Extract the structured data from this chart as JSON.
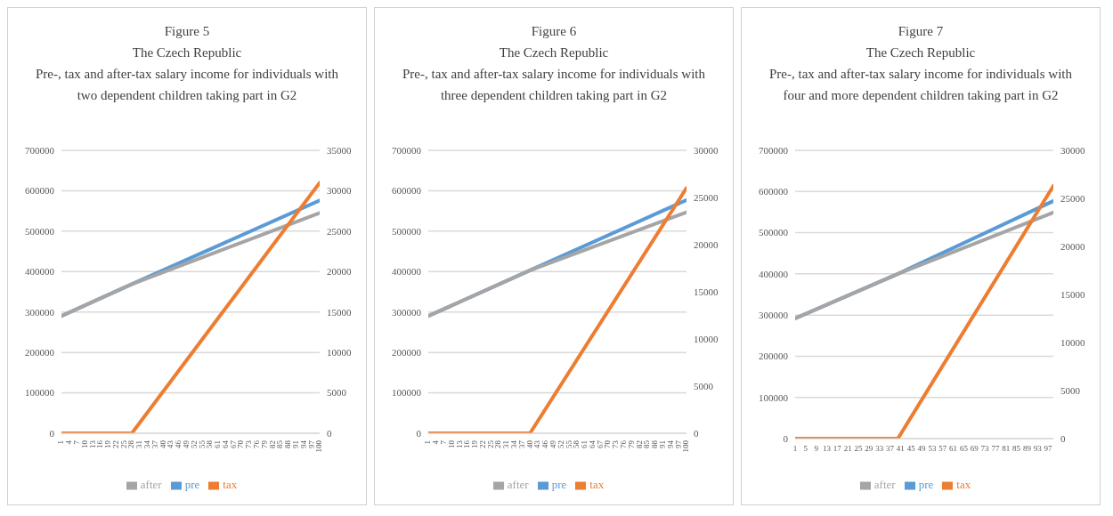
{
  "chart_data": [
    {
      "type": "line",
      "title": "Figure 5",
      "subtitle": "The Czech Republic\nPre-, tax and after-tax salary income for individuals with two dependent children taking part in G2",
      "xlim": [
        1,
        100
      ],
      "xticks": [
        1,
        4,
        7,
        10,
        13,
        16,
        19,
        22,
        25,
        28,
        31,
        34,
        37,
        40,
        43,
        46,
        49,
        52,
        55,
        58,
        61,
        64,
        67,
        70,
        73,
        76,
        79,
        82,
        85,
        88,
        91,
        94,
        97,
        100
      ],
      "ylim": [
        0,
        700000
      ],
      "yticks": [
        0,
        100000,
        200000,
        300000,
        400000,
        500000,
        600000,
        700000
      ],
      "y2lim": [
        0,
        35000
      ],
      "y2ticks": [
        0,
        5000,
        10000,
        15000,
        20000,
        25000,
        30000,
        35000
      ],
      "grid": "y",
      "legend": "bottom",
      "marker": "none",
      "line_style": "solid",
      "series": [
        {
          "name": "pre",
          "color": "#5b9bd5",
          "x": [
            1,
            28,
            100
          ],
          "values": [
            290000,
            369000,
            576000
          ]
        },
        {
          "name": "after",
          "color": "#a5a5a5",
          "x": [
            1,
            28,
            100
          ],
          "values": [
            290000,
            369000,
            545000
          ]
        },
        {
          "name": "tax",
          "color": "#ed7d31",
          "axis": "y2",
          "x": [
            1,
            28,
            100
          ],
          "values": [
            0,
            0,
            31000
          ]
        }
      ]
    },
    {
      "type": "line",
      "title": "Figure 6",
      "subtitle": "The Czech Republic\nPre-, tax and after-tax salary income for individuals with three dependent children taking part in G2",
      "xlim": [
        1,
        100
      ],
      "xticks": [
        1,
        4,
        7,
        10,
        13,
        16,
        19,
        22,
        25,
        28,
        31,
        34,
        37,
        40,
        43,
        46,
        49,
        52,
        55,
        58,
        61,
        64,
        67,
        70,
        73,
        76,
        79,
        82,
        85,
        88,
        91,
        94,
        97,
        100
      ],
      "ylim": [
        0,
        700000
      ],
      "yticks": [
        0,
        100000,
        200000,
        300000,
        400000,
        500000,
        600000,
        700000
      ],
      "y2lim": [
        0,
        30000
      ],
      "y2ticks": [
        0,
        5000,
        10000,
        15000,
        20000,
        25000,
        30000
      ],
      "grid": "y",
      "legend": "bottom",
      "marker": "none",
      "line_style": "solid",
      "series": [
        {
          "name": "pre",
          "color": "#5b9bd5",
          "x": [
            1,
            40,
            100
          ],
          "values": [
            290000,
            403000,
            577000
          ]
        },
        {
          "name": "after",
          "color": "#a5a5a5",
          "x": [
            1,
            40,
            100
          ],
          "values": [
            290000,
            403000,
            547000
          ]
        },
        {
          "name": "tax",
          "color": "#ed7d31",
          "axis": "y2",
          "x": [
            1,
            40,
            100
          ],
          "values": [
            0,
            0,
            26000
          ]
        }
      ]
    },
    {
      "type": "line",
      "title": "Figure 7",
      "subtitle": "The Czech Republic\nPre-, tax and after-tax salary income for individuals with four and more dependent children taking part in G2",
      "xlim": [
        1,
        99
      ],
      "xticks": [
        1,
        5,
        9,
        13,
        17,
        21,
        25,
        29,
        33,
        37,
        41,
        45,
        49,
        53,
        57,
        61,
        65,
        69,
        73,
        77,
        81,
        85,
        89,
        93,
        97
      ],
      "ylim": [
        0,
        700000
      ],
      "yticks": [
        0,
        100000,
        200000,
        300000,
        400000,
        500000,
        600000,
        700000
      ],
      "y2lim": [
        0,
        30000
      ],
      "y2ticks": [
        0,
        5000,
        10000,
        15000,
        20000,
        25000,
        30000
      ],
      "grid": "y",
      "legend": "bottom",
      "marker": "none",
      "line_style": "solid",
      "series": [
        {
          "name": "pre",
          "color": "#5b9bd5",
          "x": [
            1,
            40,
            99
          ],
          "values": [
            292000,
            400000,
            577000
          ]
        },
        {
          "name": "after",
          "color": "#a5a5a5",
          "x": [
            1,
            40,
            99
          ],
          "values": [
            292000,
            400000,
            549000
          ]
        },
        {
          "name": "tax",
          "color": "#ed7d31",
          "axis": "y2",
          "x": [
            1,
            40,
            99
          ],
          "values": [
            0,
            0,
            26300
          ]
        }
      ]
    }
  ]
}
